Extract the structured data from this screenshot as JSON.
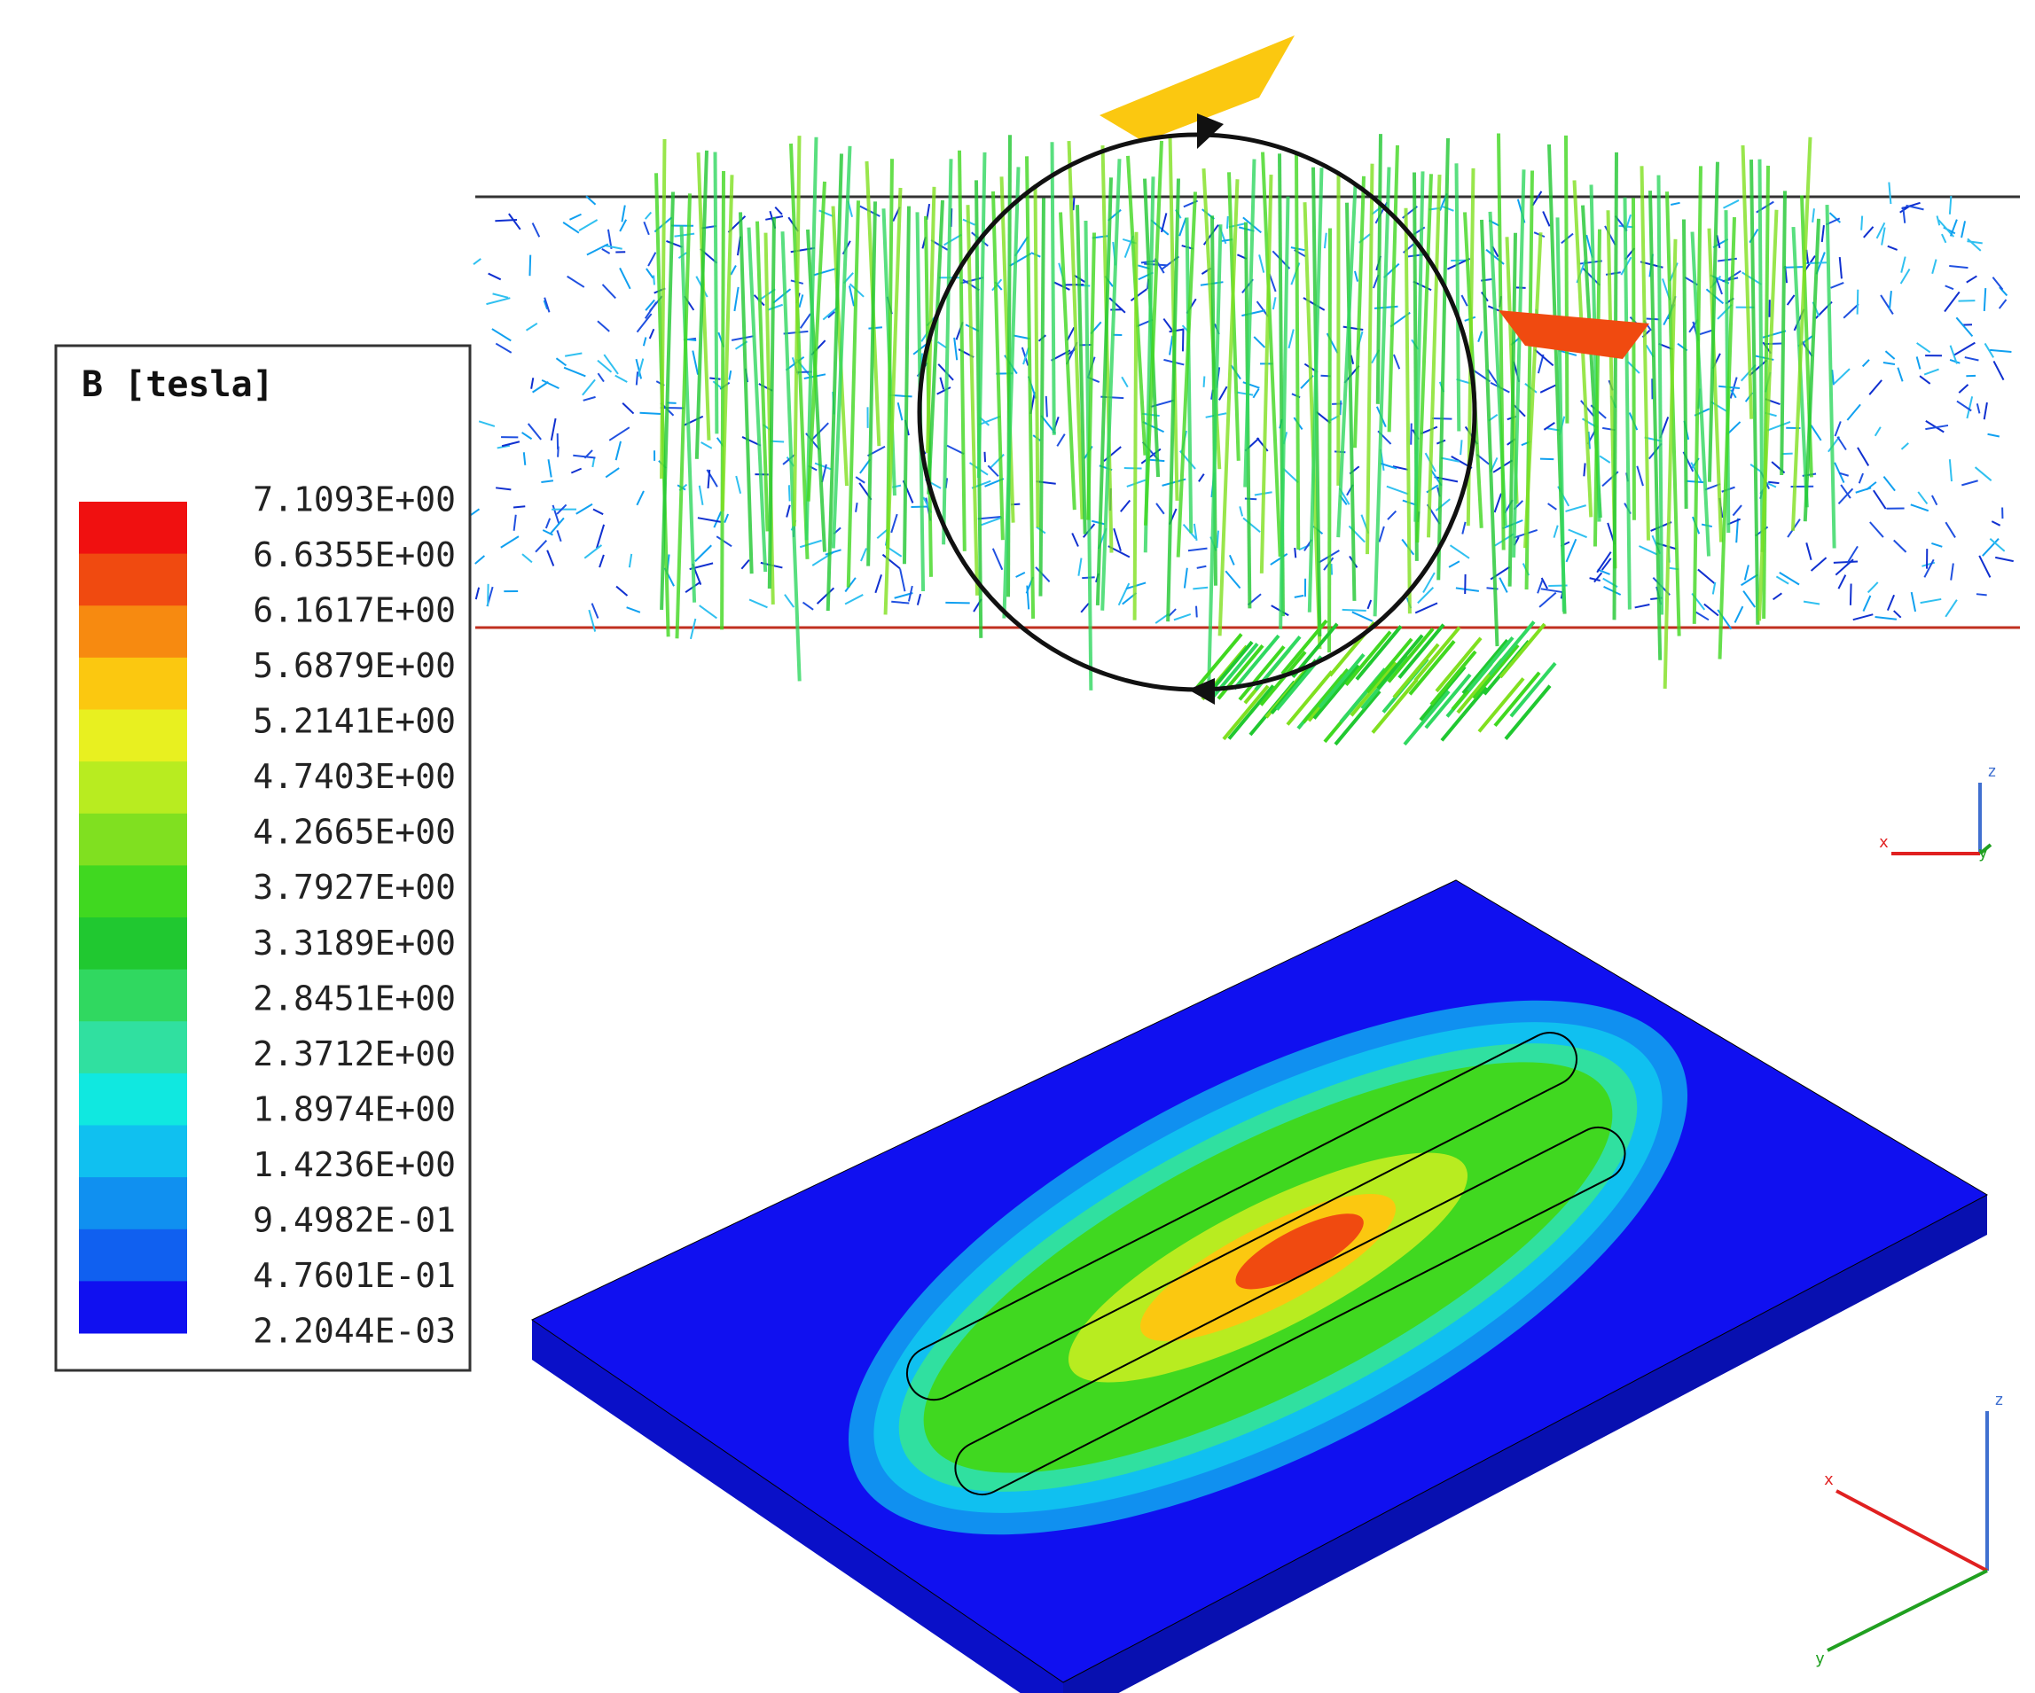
{
  "legend": {
    "title": "B [tesla]",
    "levels": [
      "7.1093E+00",
      "6.6355E+00",
      "6.1617E+00",
      "5.6879E+00",
      "5.2141E+00",
      "4.7403E+00",
      "4.2665E+00",
      "3.7927E+00",
      "3.3189E+00",
      "2.8451E+00",
      "2.3712E+00",
      "1.8974E+00",
      "1.4236E+00",
      "9.4982E-01",
      "4.7601E-01",
      "2.2044E-03"
    ],
    "colors": [
      "#f01010",
      "#f04a10",
      "#f78a10",
      "#fbc810",
      "#e8f020",
      "#b8ec20",
      "#80e020",
      "#40d820",
      "#20c830",
      "#30d860",
      "#30e0a0",
      "#10e8e0",
      "#10c0f0",
      "#1090f0",
      "#1060f0",
      "#1010f0"
    ]
  },
  "top_axes": {
    "z": "z",
    "x": "x",
    "y": "y"
  },
  "bottom_axes": {
    "z": "z",
    "x": "x",
    "y": "y"
  }
}
